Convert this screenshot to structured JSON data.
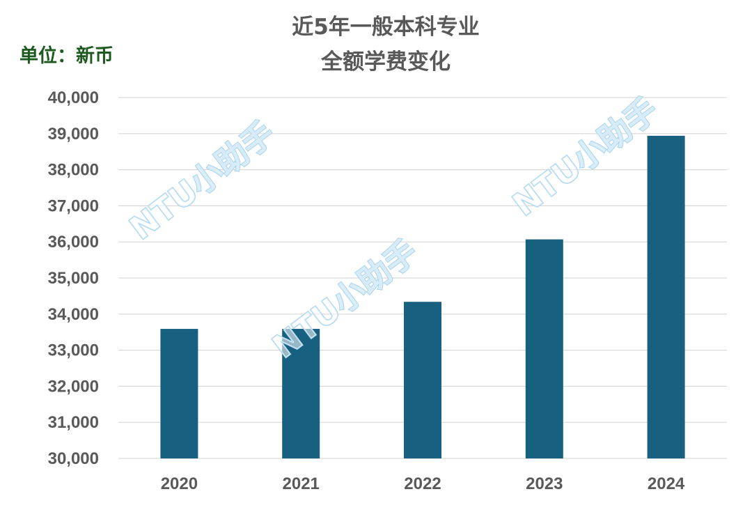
{
  "chart_data": {
    "type": "bar",
    "title": "近5年一般本科专业\n全额学费变化",
    "unit_label": "单位：新币",
    "categories": [
      "2020",
      "2021",
      "2022",
      "2023",
      "2024"
    ],
    "values": [
      33590,
      33590,
      34340,
      36070,
      38940
    ],
    "ylim": [
      30000,
      40000
    ],
    "yticks": [
      30000,
      31000,
      32000,
      33000,
      34000,
      35000,
      36000,
      37000,
      38000,
      39000,
      40000
    ],
    "ytick_labels": [
      "30,000",
      "31,000",
      "32,000",
      "33,000",
      "34,000",
      "35,000",
      "36,000",
      "37,000",
      "38,000",
      "39,000",
      "40,000"
    ],
    "grid": true,
    "legend": "none",
    "bar_color": "#17607f"
  },
  "watermark": {
    "text": "NTU小助手"
  },
  "colors": {
    "title": "#595959",
    "unit_label": "#1e5a20",
    "ticks": "#595959",
    "grid": "#d9d9d9",
    "watermark_outline": "#a9d4ee"
  }
}
